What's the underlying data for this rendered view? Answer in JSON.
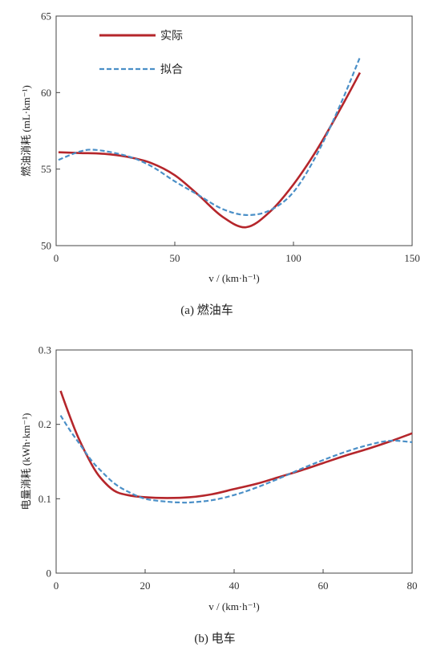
{
  "colors": {
    "actual": "#b5262b",
    "fitted": "#4a8fc7",
    "axis": "#444444"
  },
  "chart_data": [
    {
      "type": "line",
      "caption": "(a)  燃油车",
      "xlabel": "v / (km·h⁻¹)",
      "ylabel": "燃油消耗 (mL·km⁻¹)",
      "xlim": [
        0,
        150
      ],
      "ylim": [
        50,
        65
      ],
      "xticks": [
        0,
        50,
        100,
        150
      ],
      "yticks": [
        50,
        55,
        60,
        65
      ],
      "grid": false,
      "legend_position": "top-left",
      "series": [
        {
          "name": "实际",
          "style": "solid",
          "x": [
            1,
            10,
            20,
            30,
            40,
            50,
            60,
            70,
            80,
            90,
            100,
            110,
            120,
            128
          ],
          "y": [
            56.1,
            56.05,
            56.0,
            55.8,
            55.4,
            54.6,
            53.3,
            51.9,
            51.2,
            52.2,
            54.0,
            56.3,
            59.0,
            61.3
          ]
        },
        {
          "name": "拟合",
          "style": "dashed",
          "x": [
            1,
            10,
            17,
            30,
            40,
            50,
            60,
            70,
            80,
            90,
            100,
            110,
            120,
            128
          ],
          "y": [
            55.6,
            56.15,
            56.25,
            55.85,
            55.2,
            54.2,
            53.3,
            52.4,
            52.0,
            52.3,
            53.5,
            56.0,
            59.3,
            62.3
          ]
        }
      ]
    },
    {
      "type": "line",
      "caption": "(b)  电车",
      "xlabel": "v / (km·h⁻¹)",
      "ylabel": "电量消耗 (kWh·km⁻¹)",
      "xlim": [
        0,
        80
      ],
      "ylim": [
        0,
        0.3
      ],
      "xticks": [
        0,
        20,
        40,
        60,
        80
      ],
      "yticks": [
        0,
        0.1,
        0.2,
        0.3
      ],
      "grid": false,
      "series": [
        {
          "name": "实际",
          "style": "solid",
          "x": [
            1,
            3,
            5,
            8,
            10,
            13,
            16,
            20,
            25,
            30,
            35,
            40,
            45,
            50,
            55,
            60,
            65,
            70,
            75,
            80
          ],
          "y": [
            0.245,
            0.212,
            0.182,
            0.146,
            0.128,
            0.111,
            0.105,
            0.102,
            0.101,
            0.102,
            0.106,
            0.113,
            0.12,
            0.129,
            0.138,
            0.148,
            0.158,
            0.167,
            0.177,
            0.188
          ]
        },
        {
          "name": "拟合",
          "style": "dashed",
          "x": [
            1,
            3,
            5,
            8,
            10,
            13,
            16,
            20,
            25,
            28,
            30,
            35,
            40,
            45,
            50,
            55,
            60,
            65,
            70,
            75,
            80
          ],
          "y": [
            0.212,
            0.193,
            0.176,
            0.151,
            0.138,
            0.121,
            0.11,
            0.1,
            0.096,
            0.095,
            0.095,
            0.098,
            0.105,
            0.115,
            0.127,
            0.14,
            0.152,
            0.163,
            0.172,
            0.178,
            0.176
          ]
        }
      ]
    }
  ]
}
